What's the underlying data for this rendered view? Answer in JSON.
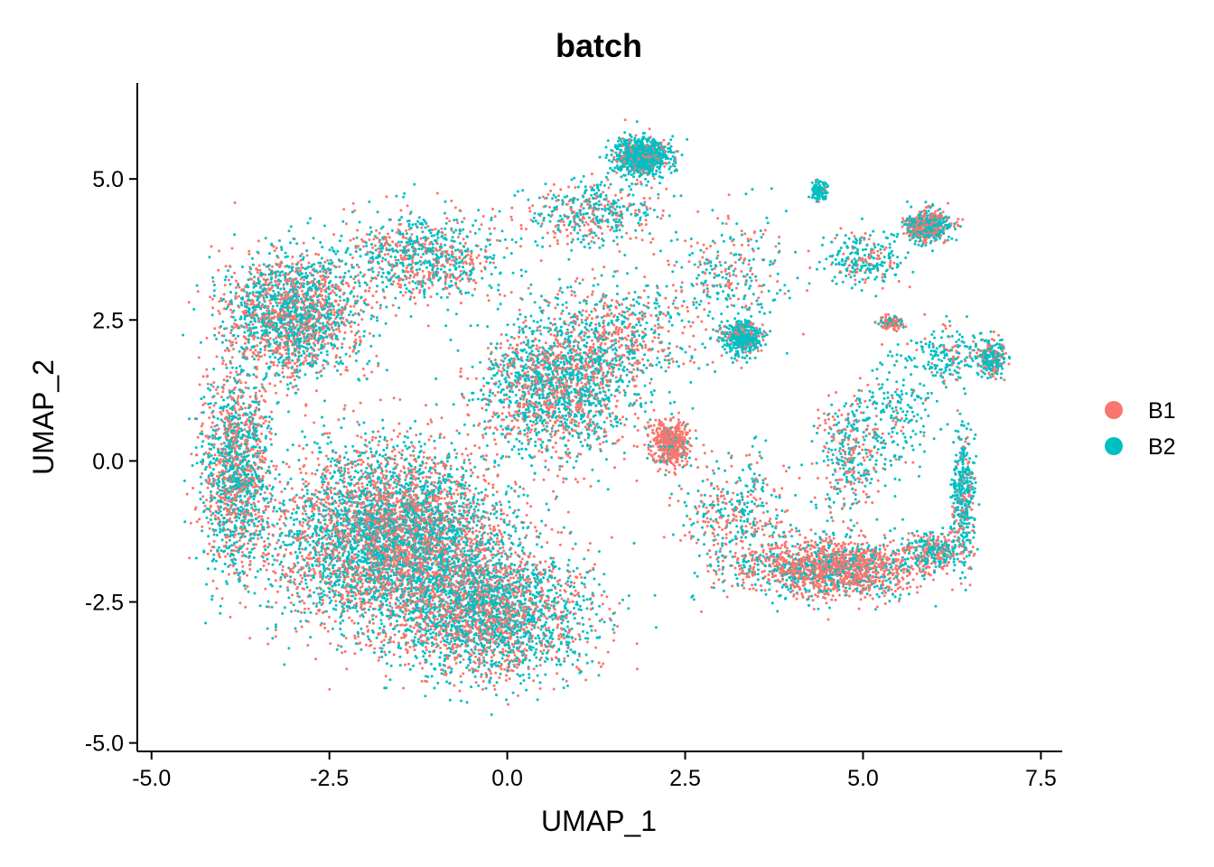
{
  "chart_data": {
    "type": "scatter",
    "title": "batch",
    "xlabel": "UMAP_1",
    "ylabel": "UMAP_2",
    "xlim": [
      -5.2,
      7.8
    ],
    "ylim": [
      -5.15,
      6.7
    ],
    "x_ticks": [
      -5.0,
      -2.5,
      0.0,
      2.5,
      5.0,
      7.5
    ],
    "x_tick_labels": [
      "-5.0",
      "-2.5",
      "0.0",
      "2.5",
      "5.0",
      "7.5"
    ],
    "y_ticks": [
      -5.0,
      -2.5,
      0.0,
      2.5,
      5.0
    ],
    "y_tick_labels": [
      "-5.0",
      "-2.5",
      "0.0",
      "2.5",
      "5.0"
    ],
    "grid": false,
    "legend_position": "right",
    "series": [
      {
        "name": "B1",
        "color": "#F8766D"
      },
      {
        "name": "B2",
        "color": "#00BFC4"
      }
    ],
    "clusters": [
      {
        "cx": -1.6,
        "cy": -1.4,
        "sx": 1.45,
        "sy": 1.45,
        "n": 5200,
        "b1": 0.47
      },
      {
        "cx": -3.0,
        "cy": 2.6,
        "sx": 0.9,
        "sy": 1.0,
        "n": 1900,
        "b1": 0.47
      },
      {
        "cx": -0.2,
        "cy": -2.7,
        "sx": 1.2,
        "sy": 1.0,
        "n": 2400,
        "b1": 0.45
      },
      {
        "cx": 0.7,
        "cy": 1.3,
        "sx": 1.0,
        "sy": 1.1,
        "n": 1700,
        "b1": 0.42
      },
      {
        "cx": -1.2,
        "cy": 3.6,
        "sx": 1.0,
        "sy": 0.7,
        "n": 800,
        "b1": 0.4
      },
      {
        "cx": -3.8,
        "cy": -0.2,
        "sx": 0.45,
        "sy": 1.6,
        "n": 1400,
        "b1": 0.48
      },
      {
        "cx": 1.9,
        "cy": 5.4,
        "sx": 0.35,
        "sy": 0.3,
        "n": 900,
        "b1": 0.2
      },
      {
        "cx": 1.2,
        "cy": 4.4,
        "sx": 0.8,
        "sy": 0.55,
        "n": 450,
        "b1": 0.4
      },
      {
        "cx": 1.5,
        "cy": 2.2,
        "sx": 1.0,
        "sy": 0.9,
        "n": 600,
        "b1": 0.5
      },
      {
        "cx": 2.3,
        "cy": 0.3,
        "sx": 0.25,
        "sy": 0.35,
        "n": 500,
        "b1": 0.85
      },
      {
        "cx": 3.3,
        "cy": 2.2,
        "sx": 0.25,
        "sy": 0.3,
        "n": 450,
        "b1": 0.2
      },
      {
        "cx": 3.1,
        "cy": 3.3,
        "sx": 0.7,
        "sy": 1.0,
        "n": 300,
        "b1": 0.4
      },
      {
        "cx": 4.4,
        "cy": 4.8,
        "sx": 0.1,
        "sy": 0.15,
        "n": 120,
        "b1": 0.05
      },
      {
        "cx": 5.9,
        "cy": 4.15,
        "sx": 0.3,
        "sy": 0.25,
        "n": 550,
        "b1": 0.45
      },
      {
        "cx": 5.0,
        "cy": 3.6,
        "sx": 0.5,
        "sy": 0.45,
        "n": 250,
        "b1": 0.25
      },
      {
        "cx": 5.4,
        "cy": 2.45,
        "sx": 0.15,
        "sy": 0.1,
        "n": 120,
        "b1": 0.7
      },
      {
        "cx": 6.8,
        "cy": 1.8,
        "sx": 0.2,
        "sy": 0.3,
        "n": 250,
        "b1": 0.3
      },
      {
        "cx": 6.4,
        "cy": -0.6,
        "sx": 0.15,
        "sy": 1.0,
        "n": 400,
        "b1": 0.2
      },
      {
        "cx": 6.2,
        "cy": 1.9,
        "sx": 0.45,
        "sy": 0.45,
        "n": 180,
        "b1": 0.2
      },
      {
        "cx": 4.6,
        "cy": -1.9,
        "sx": 1.1,
        "sy": 0.45,
        "n": 1600,
        "b1": 0.68
      },
      {
        "cx": 6.0,
        "cy": -1.6,
        "sx": 0.4,
        "sy": 0.3,
        "n": 300,
        "b1": 0.4
      },
      {
        "cx": 3.2,
        "cy": -1.1,
        "sx": 0.7,
        "sy": 1.1,
        "n": 450,
        "b1": 0.5
      },
      {
        "cx": 4.8,
        "cy": 0.1,
        "sx": 0.45,
        "sy": 0.9,
        "n": 350,
        "b1": 0.5
      },
      {
        "cx": 5.5,
        "cy": 0.8,
        "sx": 0.5,
        "sy": 0.9,
        "n": 200,
        "b1": 0.15
      }
    ]
  }
}
